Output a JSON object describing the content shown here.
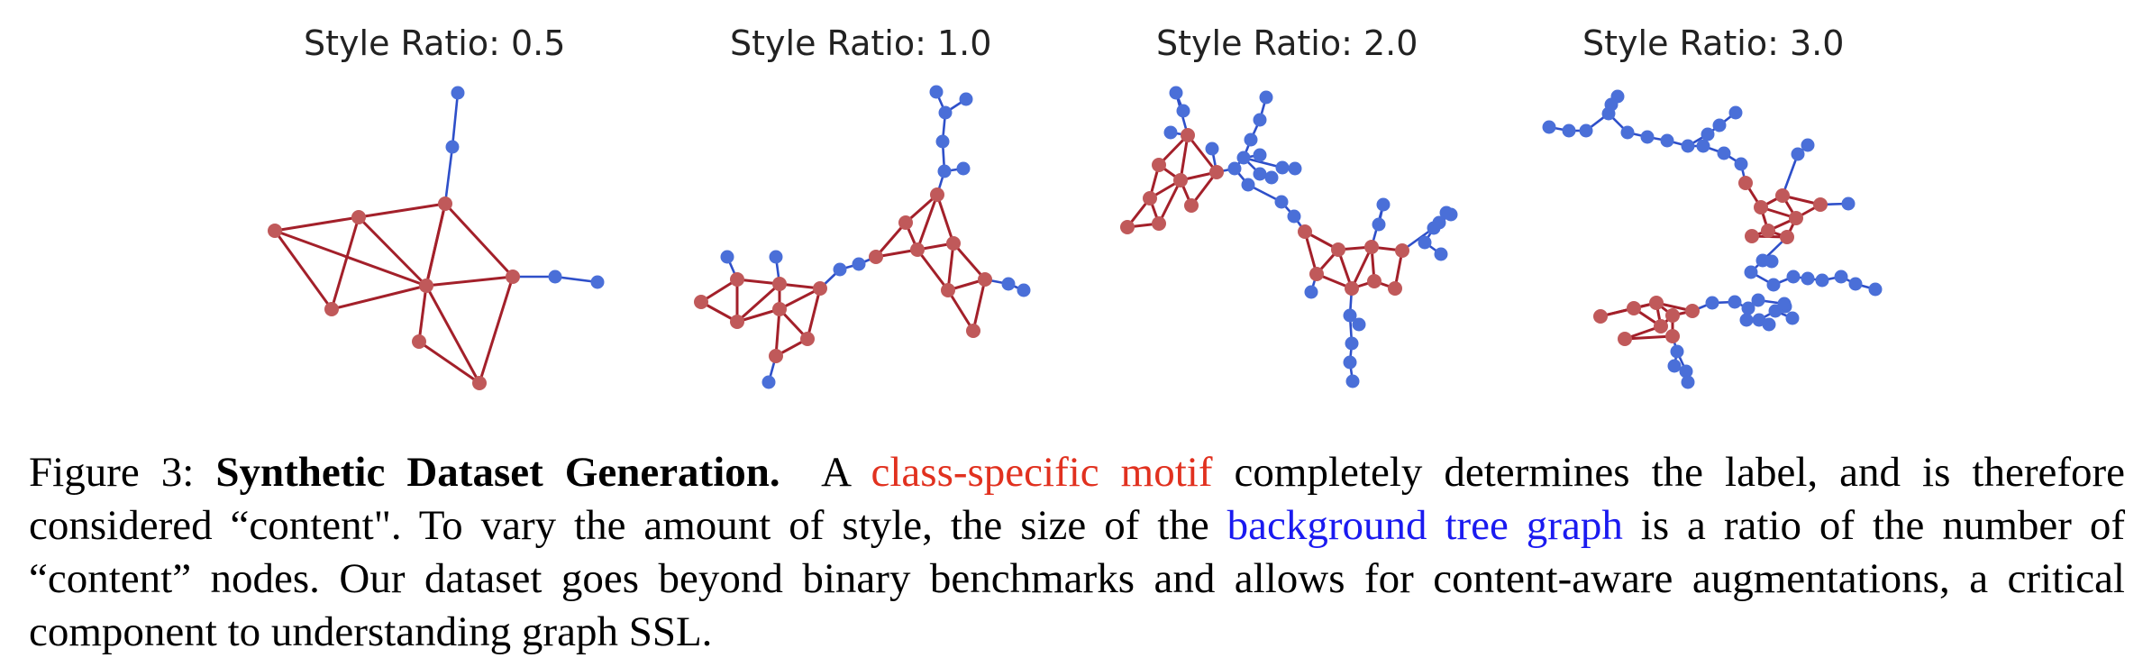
{
  "panels": [
    {
      "title": "Style Ratio: 0.5"
    },
    {
      "title": "Style Ratio: 1.0"
    },
    {
      "title": "Style Ratio: 2.0"
    },
    {
      "title": "Style Ratio: 3.0"
    }
  ],
  "colors": {
    "motif_node": "#c0595a",
    "motif_edge": "#a3202a",
    "tree_node": "#4a6fd8",
    "tree_edge": "#2e4fc9",
    "motif_text": "#e1311f",
    "tree_text": "#1a1af0"
  },
  "caption": {
    "fig_label": "Figure 3:",
    "bold_title": "Synthetic Dataset Generation.",
    "part1": "A",
    "motif_link": "class-specific motif",
    "part2": "completely determines the label, and is therefore considered “content\". To vary the amount of style, the size of the",
    "tree_link": "background tree graph",
    "part3": "is a ratio of the number of “content” nodes. Our dataset goes beyond binary benchmarks and allows for content-aware augmentations, a critical component to understanding graph SSL."
  }
}
